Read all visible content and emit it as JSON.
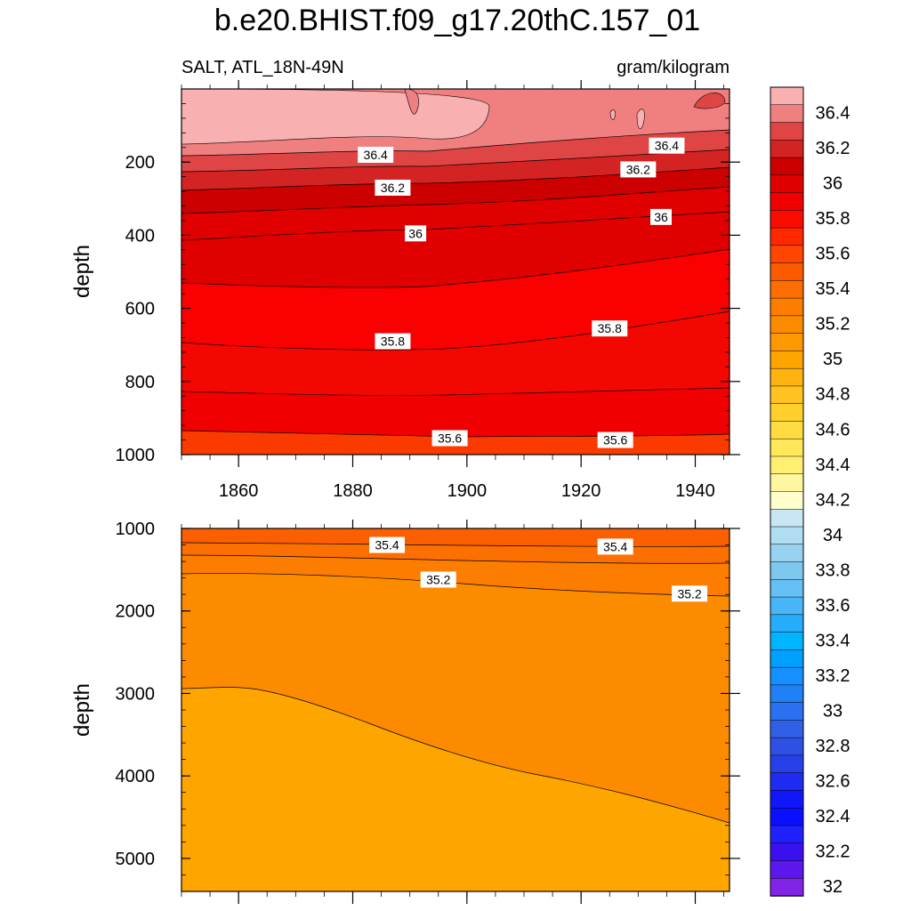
{
  "chart_data": {
    "type": "contour",
    "title": "b.e20.BHIST.f09_g17.20thC.157_01",
    "variable_label": "SALT, ATL_18N-49N",
    "units": "gram/kilogram",
    "x_ticks": [
      "1860",
      "1880",
      "1900",
      "1920",
      "1940"
    ],
    "xlim": [
      1850,
      1946
    ],
    "top_panel": {
      "ylabel": "depth",
      "ylim": [
        0,
        1000
      ],
      "y_ticks": [
        "200",
        "400",
        "600",
        "800",
        "1000"
      ],
      "contour_labels": [
        {
          "text": "36.4",
          "year": 1884,
          "depth": 180
        },
        {
          "text": "36.4",
          "year": 1935,
          "depth": 155
        },
        {
          "text": "36.2",
          "year": 1887,
          "depth": 270
        },
        {
          "text": "36.2",
          "year": 1930,
          "depth": 220
        },
        {
          "text": "36",
          "year": 1891,
          "depth": 395
        },
        {
          "text": "36",
          "year": 1934,
          "depth": 350
        },
        {
          "text": "35.8",
          "year": 1887,
          "depth": 690
        },
        {
          "text": "35.8",
          "year": 1925,
          "depth": 655
        },
        {
          "text": "35.6",
          "year": 1897,
          "depth": 955
        },
        {
          "text": "35.6",
          "year": 1926,
          "depth": 960
        }
      ]
    },
    "bottom_panel": {
      "ylabel": "depth",
      "ylim": [
        1000,
        5400
      ],
      "y_ticks": [
        "1000",
        "2000",
        "3000",
        "4000",
        "5000"
      ],
      "contour_labels": [
        {
          "text": "35.4",
          "year": 1886,
          "depth": 1200
        },
        {
          "text": "35.4",
          "year": 1926,
          "depth": 1220
        },
        {
          "text": "35.2",
          "year": 1895,
          "depth": 1620
        },
        {
          "text": "35.2",
          "year": 1939,
          "depth": 1790
        }
      ]
    },
    "colorbar": {
      "labels": [
        "36.4",
        "36.2",
        "36",
        "35.8",
        "35.6",
        "35.4",
        "35.2",
        "35",
        "34.8",
        "34.6",
        "34.4",
        "34.2",
        "34",
        "33.8",
        "33.6",
        "33.4",
        "33.2",
        "33",
        "32.8",
        "32.6",
        "32.4",
        "32.2",
        "32"
      ],
      "colors": [
        "#f9b0b0",
        "#f08080",
        "#e04545",
        "#d42323",
        "#cd0000",
        "#e00000",
        "#f00000",
        "#fa0c00",
        "#ff2800",
        "#ff4500",
        "#fb5a00",
        "#fc6e00",
        "#fc7d00",
        "#fd8b00",
        "#fe9800",
        "#ffa500",
        "#ffb310",
        "#ffc21f",
        "#ffcf2e",
        "#ffdd40",
        "#ffe859",
        "#fff073",
        "#fff7a0",
        "#ffffcc",
        "#c8e6f4",
        "#b0ddf2",
        "#97d2f0",
        "#7ec8f0",
        "#65c0f5",
        "#48b5f8",
        "#25adfb",
        "#00b5ff",
        "#00a0ff",
        "#1490ff",
        "#2080f5",
        "#2a70f0",
        "#3060e6",
        "#2e50e4",
        "#2840e8",
        "#1f2bf0",
        "#1018fa",
        "#0a10ff",
        "#2020ff",
        "#3a10f0",
        "#5a18ec",
        "#8224e8"
      ]
    }
  }
}
